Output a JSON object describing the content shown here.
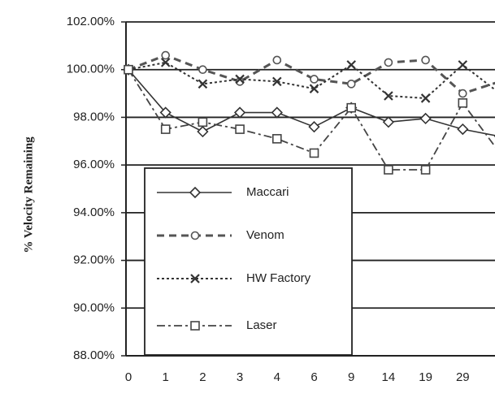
{
  "chart_data": {
    "type": "line",
    "y_label": "% Velocity Remaining",
    "categories": [
      "0",
      "1",
      "2",
      "3",
      "4",
      "6",
      "9",
      "14",
      "19",
      "29",
      null
    ],
    "series": [
      {
        "name": "Maccari",
        "color": "#333333",
        "dash": "solid",
        "marker": "diamond",
        "values": [
          100,
          98.2,
          97.4,
          98.2,
          98.2,
          97.6,
          98.4,
          97.8,
          97.95,
          97.5,
          97.2
        ]
      },
      {
        "name": "Venom",
        "color": "#555555",
        "dash": "dashed",
        "marker": "circle",
        "values": [
          100,
          100.6,
          100,
          99.5,
          100.4,
          99.6,
          99.4,
          100.3,
          100.4,
          99.0,
          99.5
        ]
      },
      {
        "name": "HW Factory",
        "color": "#333333",
        "dash": "dotted",
        "marker": "x",
        "values": [
          100,
          100.3,
          99.4,
          99.6,
          99.5,
          99.2,
          100.2,
          98.9,
          98.8,
          100.2,
          99.0
        ]
      },
      {
        "name": "Laser",
        "color": "#444444",
        "dash": "dashdot",
        "marker": "square",
        "values": [
          100,
          97.5,
          97.8,
          97.5,
          97.1,
          96.5,
          98.4,
          95.8,
          95.8,
          98.6,
          96.5
        ]
      }
    ],
    "ylim": [
      88,
      102
    ],
    "yticks": [
      {
        "value": 88,
        "label": "88.00%"
      },
      {
        "value": 90,
        "label": "90.00%"
      },
      {
        "value": 92,
        "label": "92.00%"
      },
      {
        "value": 94,
        "label": "94.00%"
      },
      {
        "value": 96,
        "label": "96.00%"
      },
      {
        "value": 98,
        "label": "98.00%"
      },
      {
        "value": 100,
        "label": "100.00%"
      },
      {
        "value": 102,
        "label": "102.00%"
      }
    ],
    "grid": true,
    "legend": "left"
  }
}
